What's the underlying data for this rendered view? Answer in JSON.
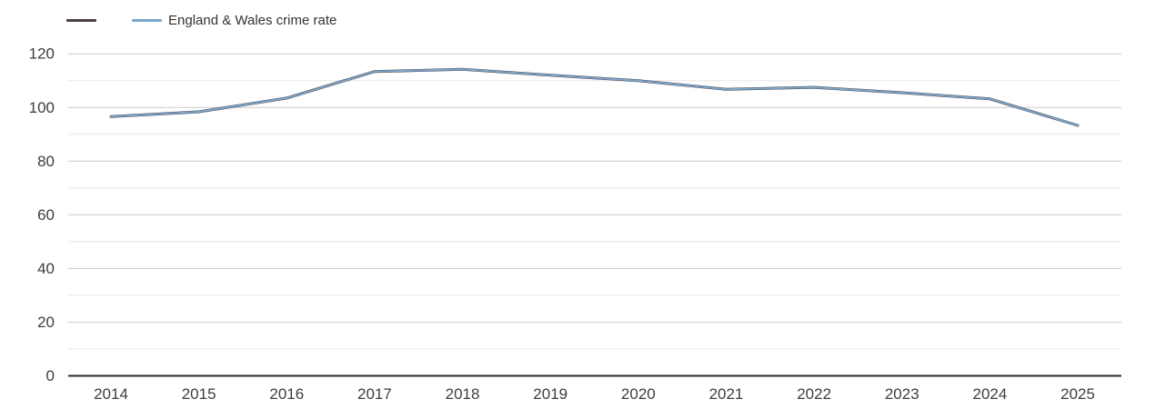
{
  "legend": {
    "items": [
      {
        "label": "",
        "color": "#4a4145"
      },
      {
        "label": "England & Wales crime rate",
        "color": "#7ba7cb"
      }
    ]
  },
  "chart_data": {
    "type": "line",
    "title": "",
    "xlabel": "",
    "ylabel": "",
    "x": [
      2014,
      2015,
      2016,
      2017,
      2018,
      2019,
      2020,
      2021,
      2022,
      2023,
      2024,
      2025
    ],
    "series": [
      {
        "name": "",
        "color": "#4a4145",
        "values": [
          96.6,
          98.4,
          103.5,
          113.4,
          114.2,
          112.0,
          110.0,
          106.8,
          107.5,
          105.5,
          103.2,
          93.3
        ]
      },
      {
        "name": "England & Wales crime rate",
        "color": "#7ba7cb",
        "values": [
          96.6,
          98.4,
          103.5,
          113.4,
          114.2,
          112.0,
          110.0,
          106.8,
          107.5,
          105.5,
          103.2,
          93.3
        ]
      }
    ],
    "ylim": [
      0,
      130
    ],
    "yticks_major": [
      0,
      20,
      40,
      60,
      80,
      100,
      120
    ],
    "yticks_minor": [
      10,
      30,
      50,
      70,
      90,
      110
    ],
    "grid": true,
    "legend_position": "top-left",
    "colors": {
      "major_gridline": "#cbcbcb",
      "minor_gridline": "#e8e8e8",
      "axis_line": "#2b2b2b",
      "tick_label": "#3d3d3d"
    }
  }
}
